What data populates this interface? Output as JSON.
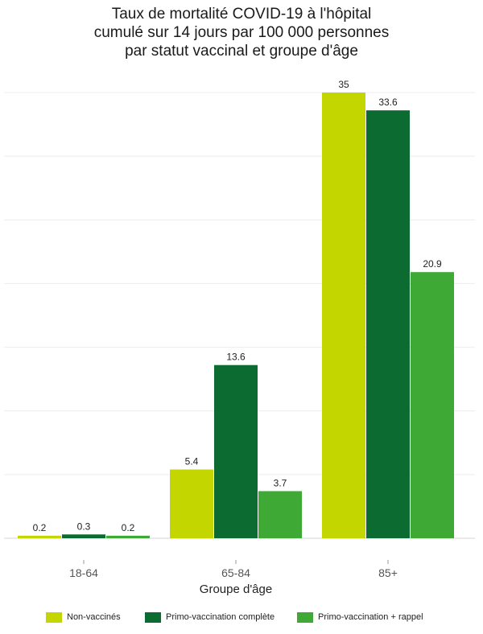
{
  "chart_data": {
    "type": "bar",
    "title_lines": [
      "Taux de mortalité COVID-19 à l'hôpital",
      "cumulé sur 14 jours par 100 000 personnes",
      "par statut vaccinal et groupe d'âge"
    ],
    "xlabel": "Groupe d'âge",
    "ylabel": "",
    "categories": [
      "18-64",
      "65-84",
      "85+"
    ],
    "series": [
      {
        "name": "Non-vaccinés",
        "values": [
          0.2,
          5.4,
          35
        ],
        "labels": [
          "0.2",
          "5.4",
          "35"
        ],
        "color": "#c3d600"
      },
      {
        "name": "Primo-vaccination complète",
        "values": [
          0.3,
          13.6,
          33.6
        ],
        "labels": [
          "0.3",
          "13.6",
          "33.6"
        ],
        "color": "#0b6b30"
      },
      {
        "name": "Primo-vaccination + rappel",
        "values": [
          0.2,
          3.7,
          20.9
        ],
        "labels": [
          "0.2",
          "3.7",
          "20.9"
        ],
        "color": "#3fa935"
      }
    ],
    "ylim": [
      0,
      35
    ],
    "grid": true,
    "legend_position": "bottom"
  }
}
